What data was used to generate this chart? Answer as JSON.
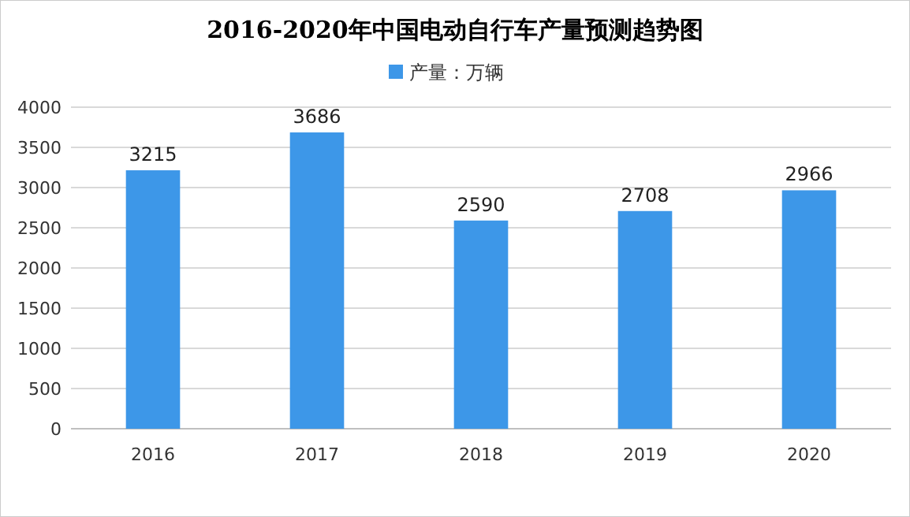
{
  "chart_data": {
    "type": "bar",
    "title": "2016-2020年中国电动自行车产量预测趋势图",
    "categories": [
      "2016",
      "2017",
      "2018",
      "2019",
      "2020"
    ],
    "series": [
      {
        "name": "产量：万辆",
        "color": "#3d97e8",
        "values": [
          3215,
          3686,
          2590,
          2708,
          2966
        ]
      }
    ],
    "ylim": [
      0,
      4000
    ],
    "yticks": [
      0,
      500,
      1000,
      1500,
      2000,
      2500,
      3000,
      3500,
      4000
    ],
    "grid": "y",
    "legend": "top",
    "data_labels": true
  }
}
